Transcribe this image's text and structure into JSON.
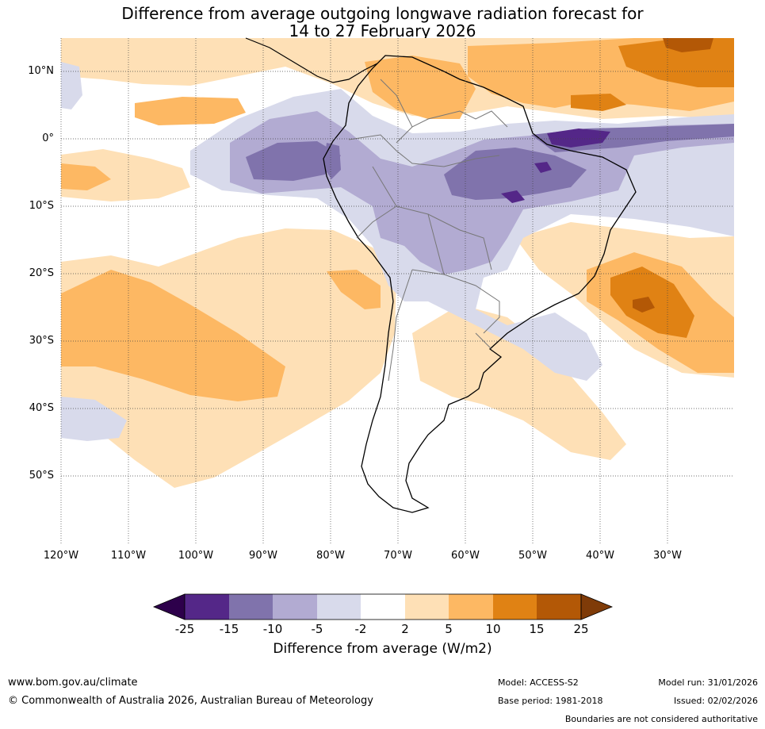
{
  "title": {
    "line1": "Difference from average outgoing longwave radiation forecast for",
    "line2": "14 to 27 February 2026"
  },
  "map": {
    "lat_labels": [
      "10°N",
      "0°",
      "10°S",
      "20°S",
      "30°S",
      "40°S",
      "50°S"
    ],
    "lon_labels": [
      "120°W",
      "110°W",
      "100°W",
      "90°W",
      "80°W",
      "70°W",
      "60°W",
      "50°W",
      "40°W",
      "30°W"
    ]
  },
  "colorbar": {
    "ticks": [
      "-25",
      "-15",
      "-10",
      "-5",
      "-2",
      "2",
      "5",
      "10",
      "15",
      "25"
    ],
    "label": "Difference from average (W/m2)",
    "colors": {
      "below_min": "#2d004b",
      "c_m25_m15": "#542788",
      "c_m15_m10": "#8073ac",
      "c_m10_m5": "#b2abd2",
      "c_m5_m2": "#d8daeb",
      "c_m2_2": "#ffffff",
      "c_2_5": "#fee0b6",
      "c_5_10": "#fdb863",
      "c_10_15": "#e08214",
      "c_15_25": "#b35806",
      "above_max": "#7f3b08"
    }
  },
  "footer": {
    "website": "www.bom.gov.au/climate",
    "copyright": "© Commonwealth of Australia 2026, Australian Bureau of Meteorology",
    "model": "Model: ACCESS-S2",
    "model_run": "Model run: 31/01/2026",
    "base_period": "Base period: 1981-2018",
    "issued": "Issued: 02/02/2026",
    "disclaimer": "Boundaries are not considered authoritative"
  }
}
